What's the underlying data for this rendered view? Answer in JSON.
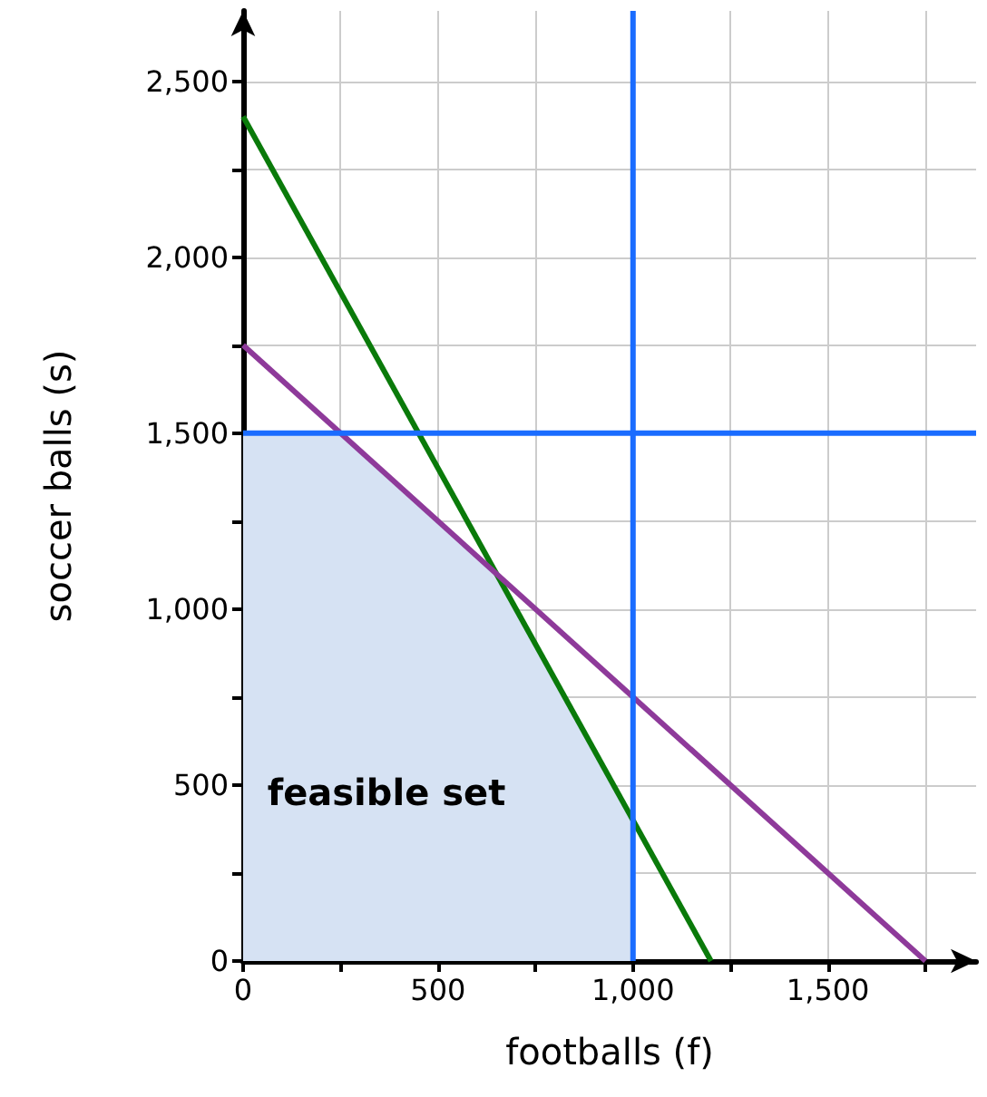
{
  "chart_data": {
    "type": "line",
    "xlabel": "footballs (f)",
    "ylabel": "soccer balls (s)",
    "xlim": [
      0,
      1880
    ],
    "ylim": [
      0,
      2700
    ],
    "xticks": [
      0,
      {
        "value": 250,
        "label": null
      },
      {
        "value": 500,
        "label": "500"
      },
      {
        "value": 750,
        "label": null
      },
      {
        "value": 1000,
        "label": "1,000"
      },
      {
        "value": 1250,
        "label": null
      },
      {
        "value": 1500,
        "label": "1,500"
      },
      {
        "value": 1750,
        "label": null
      }
    ],
    "yticks": [
      0,
      {
        "value": 250,
        "label": null
      },
      {
        "value": 500,
        "label": "500"
      },
      {
        "value": 750,
        "label": null
      },
      {
        "value": 1000,
        "label": "1,000"
      },
      {
        "value": 1250,
        "label": null
      },
      {
        "value": 1500,
        "label": "1,500"
      },
      {
        "value": 1750,
        "label": null
      },
      {
        "value": 2000,
        "label": "2,000"
      },
      {
        "value": 2250,
        "label": null
      },
      {
        "value": 2500,
        "label": "2,500"
      }
    ],
    "grid": true,
    "marker": "none",
    "series": [
      {
        "type": "area",
        "color": "#d6e2f3",
        "x": [
          0,
          250,
          650,
          1000,
          1000
        ],
        "values": [
          1500,
          1500,
          1100,
          400,
          0
        ]
      },
      {
        "color": "#0a7a0a",
        "x": [
          0,
          1200
        ],
        "values": [
          2400,
          0
        ]
      },
      {
        "color": "#8e3a9a",
        "x": [
          0,
          1750
        ],
        "values": [
          1750,
          0
        ]
      },
      {
        "color": "#1a6cff",
        "x": [
          0,
          1880
        ],
        "values": [
          1500,
          1500
        ]
      },
      {
        "color": "#1a6cff",
        "x": [
          1000,
          1000
        ],
        "values": [
          0,
          2700
        ]
      }
    ],
    "annotations": [
      "feasible set"
    ]
  }
}
